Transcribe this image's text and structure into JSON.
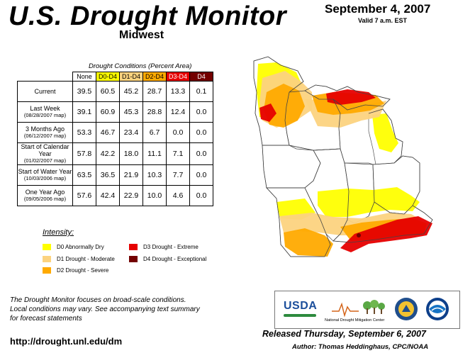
{
  "header": {
    "title": "U.S. Drought Monitor",
    "region": "Midwest",
    "date": "September 4, 2007",
    "valid": "Valid 7 a.m. EST"
  },
  "table": {
    "caption": "Drought Conditions (Percent Area)",
    "columns": [
      "None",
      "D0-D4",
      "D1-D4",
      "D2-D4",
      "D3-D4",
      "D4"
    ],
    "rows": [
      {
        "label": "Current",
        "sub": "",
        "values": [
          "39.5",
          "60.5",
          "45.2",
          "28.7",
          "13.3",
          "0.1"
        ]
      },
      {
        "label": "Last Week",
        "sub": "(08/28/2007 map)",
        "values": [
          "39.1",
          "60.9",
          "45.3",
          "28.8",
          "12.4",
          "0.0"
        ]
      },
      {
        "label": "3 Months Ago",
        "sub": "(06/12/2007 map)",
        "values": [
          "53.3",
          "46.7",
          "23.4",
          "6.7",
          "0.0",
          "0.0"
        ]
      },
      {
        "label": "Start of Calendar Year",
        "sub": "(01/02/2007 map)",
        "values": [
          "57.8",
          "42.2",
          "18.0",
          "11.1",
          "7.1",
          "0.0"
        ]
      },
      {
        "label": "Start of Water Year",
        "sub": "(10/03/2006 map)",
        "values": [
          "63.5",
          "36.5",
          "21.9",
          "10.3",
          "7.7",
          "0.0"
        ]
      },
      {
        "label": "One Year Ago",
        "sub": "(09/05/2006 map)",
        "values": [
          "57.6",
          "42.4",
          "22.9",
          "10.0",
          "4.6",
          "0.0"
        ]
      }
    ]
  },
  "legend": {
    "title": "Intensity:",
    "items": [
      {
        "label": "D0 Abnormally Dry",
        "color": "#ffff00"
      },
      {
        "label": "D1 Drought - Moderate",
        "color": "#fcd37f"
      },
      {
        "label": "D2 Drought - Severe",
        "color": "#ffaa00"
      },
      {
        "label": "D3 Drought - Extreme",
        "color": "#e60000"
      },
      {
        "label": "D4 Drought - Exceptional",
        "color": "#730000"
      }
    ]
  },
  "colors": {
    "none": "#ffffff",
    "d0": "#ffff00",
    "d1": "#fcd37f",
    "d2": "#ffaa00",
    "d3": "#e60000",
    "d4": "#730000",
    "lake": "#ffffff"
  },
  "footer": {
    "note_lines": [
      "The Drought Monitor focuses on broad-scale conditions.",
      "Local conditions may vary. See accompanying text summary",
      "for forecast statements"
    ],
    "url": "http://drought.unl.edu/dm",
    "released": "Released Thursday, September 6, 2007",
    "author": "Author: Thomas Heddinghaus, CPC/NOAA"
  },
  "logos": {
    "usda": "USDA",
    "ndmc": "National Drought Mitigation Center"
  }
}
